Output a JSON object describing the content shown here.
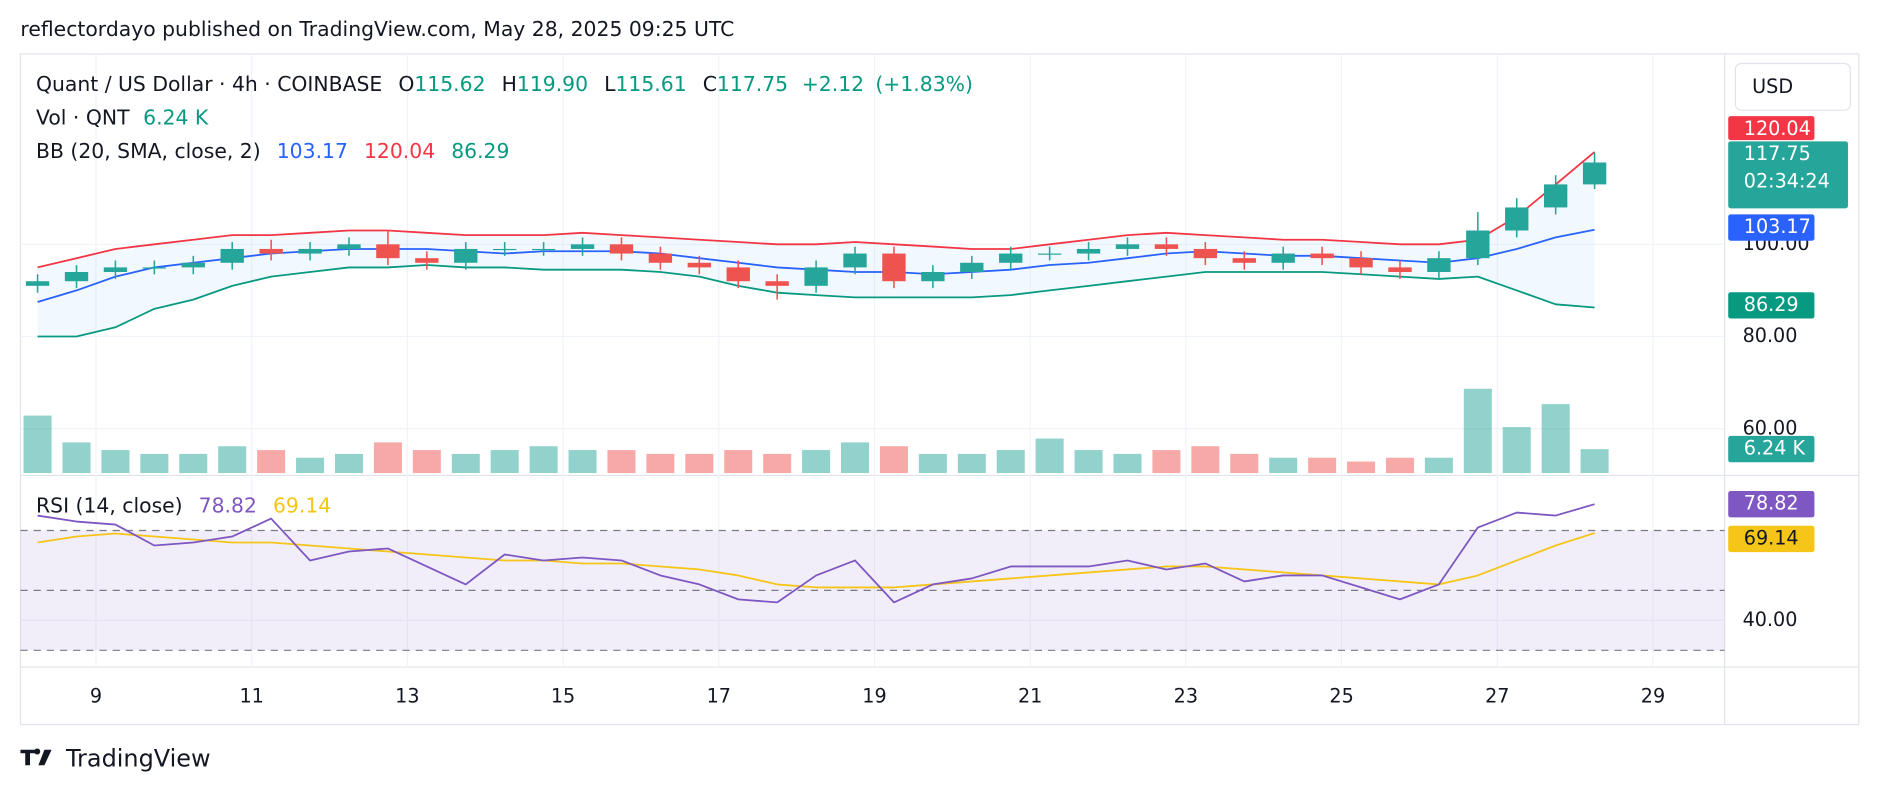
{
  "header": {
    "published": "reflectordayo published on TradingView.com, May 28, 2025 09:25 UTC",
    "brand": "TradingView"
  },
  "chart_data": {
    "type": "candlestick",
    "title": "Quant / US Dollar · 4h · COINBASE",
    "currency": "USD",
    "countdown": "02:34:24",
    "ohlc_labels": [
      "O",
      "H",
      "L",
      "C"
    ],
    "last_bar": {
      "open": 115.62,
      "high": {
        "value": 119.9,
        "label": "119.90"
      },
      "low": 115.61,
      "close": 117.75,
      "change": {
        "value": 2.12,
        "label": "+2.12"
      },
      "change_pct": {
        "value": 1.83,
        "label": "(+1.83%)"
      }
    },
    "x": [
      8.25,
      8.75,
      9.25,
      9.75,
      10.25,
      10.75,
      11.25,
      11.75,
      12.25,
      12.75,
      13.25,
      13.75,
      14.25,
      14.75,
      15.25,
      15.75,
      16.25,
      16.75,
      17.25,
      17.75,
      18.25,
      18.75,
      19.25,
      19.75,
      20.25,
      20.75,
      21.25,
      21.75,
      22.25,
      22.75,
      23.25,
      23.75,
      24.25,
      24.75,
      25.25,
      25.75,
      26.25,
      26.75,
      27.25,
      27.75,
      28.25
    ],
    "xlim": [
      8.03,
      29.92
    ],
    "xticks": [
      9,
      11,
      13,
      15,
      17,
      19,
      21,
      23,
      25,
      27,
      29
    ],
    "ylim": [
      50.4,
      141.3
    ],
    "yticks": [
      {
        "value": 60,
        "label": "60.00"
      },
      {
        "value": 80,
        "label": "80.00"
      },
      {
        "value": 100,
        "label": "100.00"
      }
    ],
    "grid": true,
    "candles": {
      "up_color": "#26a69a",
      "down_color": "#ef5350",
      "open": [
        91,
        92,
        94,
        95,
        95,
        96,
        99,
        98,
        99,
        100,
        97,
        96,
        99,
        99,
        99,
        100,
        98,
        96,
        95,
        92,
        91,
        95,
        98,
        92,
        94,
        96,
        98,
        98,
        99,
        100,
        99,
        97,
        96,
        98,
        97,
        95,
        94,
        97,
        103,
        108,
        113
      ],
      "high": [
        93.5,
        95.5,
        96.5,
        96.5,
        97.5,
        100.5,
        101,
        100.5,
        101.5,
        103,
        98.5,
        100.5,
        100.5,
        100.5,
        101.5,
        101.5,
        99.5,
        97.5,
        96.5,
        93.5,
        96.5,
        99.5,
        99.5,
        95.5,
        97.5,
        99.5,
        99.5,
        100.5,
        101.5,
        101.5,
        100.5,
        98.5,
        99.5,
        99.5,
        98.5,
        96.5,
        98.5,
        107,
        110,
        115,
        119.9
      ],
      "low": [
        89.5,
        90.5,
        92.5,
        93.5,
        93.5,
        94.5,
        96.5,
        96.5,
        97.5,
        95.5,
        94.5,
        94.5,
        97.5,
        97.5,
        97.5,
        96.5,
        94.5,
        93.5,
        90.5,
        88,
        89.5,
        93.5,
        90.5,
        90.5,
        92.5,
        94.5,
        96.5,
        96.5,
        97.5,
        97.5,
        95.5,
        94.5,
        94.5,
        95.5,
        93.5,
        92.5,
        92.5,
        95.5,
        101.5,
        106.5,
        112
      ],
      "close": [
        92,
        94,
        95,
        95,
        96,
        99,
        98,
        99,
        100,
        97,
        96,
        99,
        99,
        99,
        100,
        98,
        96,
        95,
        92,
        91,
        95,
        98,
        92,
        94,
        96,
        98,
        98,
        99,
        100,
        99,
        97,
        96,
        98,
        97,
        95,
        94,
        97,
        103,
        108,
        113,
        117.75
      ]
    },
    "volume": {
      "label": "Vol · QNT",
      "legend_value": {
        "value": 6.24,
        "label": "6.24 K"
      },
      "vlim": [
        0,
        27.2
      ],
      "values": [
        15,
        8,
        6,
        5,
        5,
        7,
        6,
        4,
        5,
        8,
        6,
        5,
        6,
        7,
        6,
        6,
        5,
        5,
        6,
        5,
        6,
        8,
        7,
        5,
        5,
        6,
        9,
        6,
        5,
        6,
        7,
        5,
        4,
        4,
        3,
        4,
        4,
        22,
        12,
        18,
        6.24
      ]
    },
    "bb": {
      "label": "BB (20, SMA, close, 2)",
      "fill": "rgba(33,150,243,0.06)",
      "middle": {
        "color": "#2962ff",
        "values": [
          87.5,
          90,
          93,
          95,
          96,
          97,
          98,
          98.5,
          99,
          99,
          99,
          98.5,
          98,
          98.5,
          98.5,
          98.5,
          98,
          97,
          96,
          95,
          94.5,
          94,
          94,
          93.5,
          94,
          94.5,
          95.5,
          96,
          97,
          98,
          98.5,
          98,
          97.5,
          97.5,
          97,
          96.5,
          96,
          97,
          99,
          101.5,
          103.17
        ]
      },
      "upper": {
        "color": "#f23645",
        "values": [
          95,
          97,
          99,
          100,
          101,
          102,
          102,
          102.5,
          103,
          103,
          102.5,
          102,
          102,
          102,
          102.5,
          102,
          101.5,
          101,
          100.5,
          100,
          100,
          100.5,
          100,
          99.5,
          99,
          99,
          100,
          101,
          102,
          102.5,
          102,
          101.5,
          101,
          101,
          100.5,
          100,
          100,
          101,
          106,
          113,
          120.04
        ]
      },
      "lower": {
        "color": "#089981",
        "values": [
          80,
          80,
          82,
          86,
          88,
          91,
          93,
          94,
          95,
          95,
          95.5,
          95,
          95,
          94.5,
          94.5,
          94.5,
          94,
          93,
          91,
          89.5,
          89,
          88.5,
          88.5,
          88.5,
          88.5,
          89,
          90,
          91,
          92,
          93,
          94,
          94,
          94,
          94,
          93.5,
          93,
          92.5,
          93,
          90,
          87,
          86.29
        ]
      }
    },
    "rsi": {
      "label": "RSI (14, close)",
      "ylim": [
        24.4,
        88
      ],
      "yticks": [
        {
          "value": 40,
          "label": "40.00"
        }
      ],
      "levels": [
        70,
        50,
        30
      ],
      "band_fill": "rgba(126,87,194,0.1)",
      "line": {
        "color": "#7e57c2",
        "values": [
          75,
          73,
          72,
          65,
          66,
          68,
          74,
          60,
          63,
          64,
          58,
          52,
          62,
          60,
          61,
          60,
          55,
          52,
          47,
          46,
          55,
          60,
          46,
          52,
          54,
          58,
          58,
          58,
          60,
          57,
          59,
          53,
          55,
          55,
          51,
          47,
          52,
          71,
          76,
          75,
          78.82
        ]
      },
      "ma": {
        "color": "#f5c518",
        "values": [
          66,
          68,
          69,
          68,
          67,
          66,
          66,
          65,
          64,
          63,
          62,
          61,
          60,
          60,
          59,
          59,
          58,
          57,
          55,
          52,
          51,
          51,
          51,
          52,
          53,
          54,
          55,
          56,
          57,
          58,
          58,
          57,
          56,
          55,
          54,
          53,
          52,
          55,
          60,
          65,
          69.14
        ]
      }
    }
  }
}
